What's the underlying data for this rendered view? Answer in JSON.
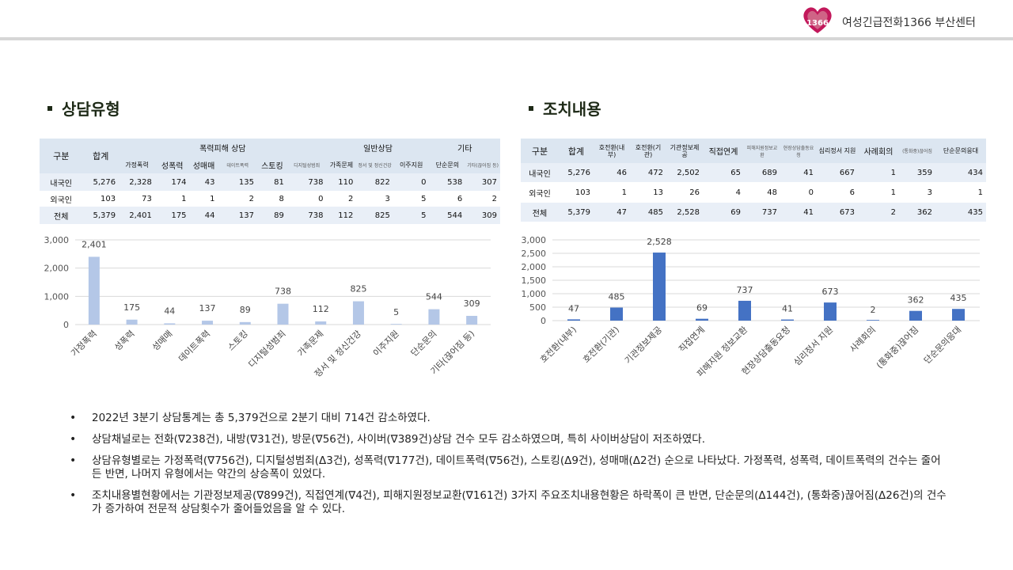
{
  "header": {
    "org_name": "여성긴급전화1366 부산센터",
    "logo_text": "1366",
    "logo_color": "#c2185b"
  },
  "section_left": {
    "title": "상담유형",
    "table": {
      "h_gubun": "구분",
      "h_total": "합계",
      "h_group1": "폭력피해 상담",
      "h_group2": "일반상담",
      "h_group3": "기타",
      "sub_headers": [
        "가정폭력",
        "성폭력",
        "성매매",
        "데이트폭력",
        "스토킹",
        "디지털성범죄",
        "가족문제",
        "정서 및 정신건강",
        "이주지원",
        "단순문의",
        "기타(끊어짐 등)"
      ],
      "rows": [
        {
          "label": "내국인",
          "values": [
            "5,276",
            "2,328",
            "174",
            "43",
            "135",
            "81",
            "738",
            "110",
            "822",
            "0",
            "538",
            "307"
          ]
        },
        {
          "label": "외국인",
          "values": [
            "103",
            "73",
            "1",
            "1",
            "2",
            "8",
            "0",
            "2",
            "3",
            "5",
            "6",
            "2"
          ]
        },
        {
          "label": "전체",
          "values": [
            "5,379",
            "2,401",
            "175",
            "44",
            "137",
            "89",
            "738",
            "112",
            "825",
            "5",
            "544",
            "309"
          ]
        }
      ]
    }
  },
  "section_right": {
    "title": "조치내용",
    "table": {
      "h_gubun": "구분",
      "h_total": "합계",
      "col_headers": [
        "호전환(내부)",
        "호전환(기관)",
        "기관정보제공",
        "직접연계",
        "피해지원정보교환",
        "현장상담출동요청",
        "심리정서 지원",
        "사례회의",
        "(통화중)끊어짐",
        "단순문의응대"
      ],
      "rows": [
        {
          "label": "내국인",
          "values": [
            "5,276",
            "46",
            "472",
            "2,502",
            "65",
            "689",
            "41",
            "667",
            "1",
            "359",
            "434"
          ]
        },
        {
          "label": "외국인",
          "values": [
            "103",
            "1",
            "13",
            "26",
            "4",
            "48",
            "0",
            "6",
            "1",
            "3",
            "1"
          ]
        },
        {
          "label": "전체",
          "values": [
            "5,379",
            "47",
            "485",
            "2,528",
            "69",
            "737",
            "41",
            "673",
            "2",
            "362",
            "435"
          ]
        }
      ]
    }
  },
  "chart_data": [
    {
      "type": "bar",
      "categories": [
        "가정폭력",
        "성폭력",
        "성매매",
        "데이트폭력",
        "스토킹",
        "디지털성범죄",
        "가족문제",
        "정서 및 정신건강",
        "이주지원",
        "단순문의",
        "기타(끊어짐 등)"
      ],
      "values": [
        2401,
        175,
        44,
        137,
        89,
        738,
        112,
        825,
        5,
        544,
        309
      ],
      "value_labels": [
        "2,401",
        "175",
        "44",
        "137",
        "89",
        "738",
        "112",
        "825",
        "5",
        "544",
        "309"
      ],
      "ylim": [
        0,
        3000
      ],
      "yticks": [
        "0",
        "1,000",
        "2,000",
        "3,000"
      ],
      "ytick_values": [
        0,
        1000,
        2000,
        3000
      ],
      "bar_color": "#b4c7e7",
      "grid": true
    },
    {
      "type": "bar",
      "categories": [
        "호전환(내부)",
        "호전환(기관)",
        "기관정보제공",
        "직접연계",
        "피해지원 정보교환",
        "현장상담출동요청",
        "심리정서 지원",
        "사례회의",
        "(통화중)끊어짐",
        "단순문의응대"
      ],
      "values": [
        47,
        485,
        2528,
        69,
        737,
        41,
        673,
        2,
        362,
        435
      ],
      "value_labels": [
        "47",
        "485",
        "2,528",
        "69",
        "737",
        "41",
        "673",
        "2",
        "362",
        "435"
      ],
      "ylim": [
        0,
        3000
      ],
      "yticks": [
        "0",
        "500",
        "1,000",
        "1,500",
        "2,000",
        "2,500",
        "3,000"
      ],
      "ytick_values": [
        0,
        500,
        1000,
        1500,
        2000,
        2500,
        3000
      ],
      "bar_color": "#4472c4",
      "grid": true
    }
  ],
  "notes": [
    "2022년 3분기 상담통계는 총 5,379건으로 2분기 대비 714건 감소하였다.",
    "상담채널로는 전화(∇238건), 내방(∇31건), 방문(∇56건), 사이버(∇389건)상담 건수 모두 감소하였으며, 특히 사이버상담이 저조하였다.",
    "상담유형별로는 가정폭력(∇756건), 디지털성범죄(Δ3건), 성폭력(∇177건), 데이트폭력(∇56건), 스토킹(Δ9건), 성매매(Δ2건) 순으로 나타났다. 가정폭력, 성폭력, 데이트폭력의 건수는 줄어든 반면, 나머지 유형에서는 약간의 상승폭이 있었다.",
    "조치내용별현황에서는 기관정보제공(∇899건), 직접연계(∇4건), 피해지원정보교환(∇161건) 3가지 주요조치내용현황은 하락폭이 큰 반면, 단순문의(Δ144건), (통화중)끊어짐(Δ26건)의 건수가 증가하여 전문적 상담횟수가 줄어들었음을 알 수 있다."
  ]
}
